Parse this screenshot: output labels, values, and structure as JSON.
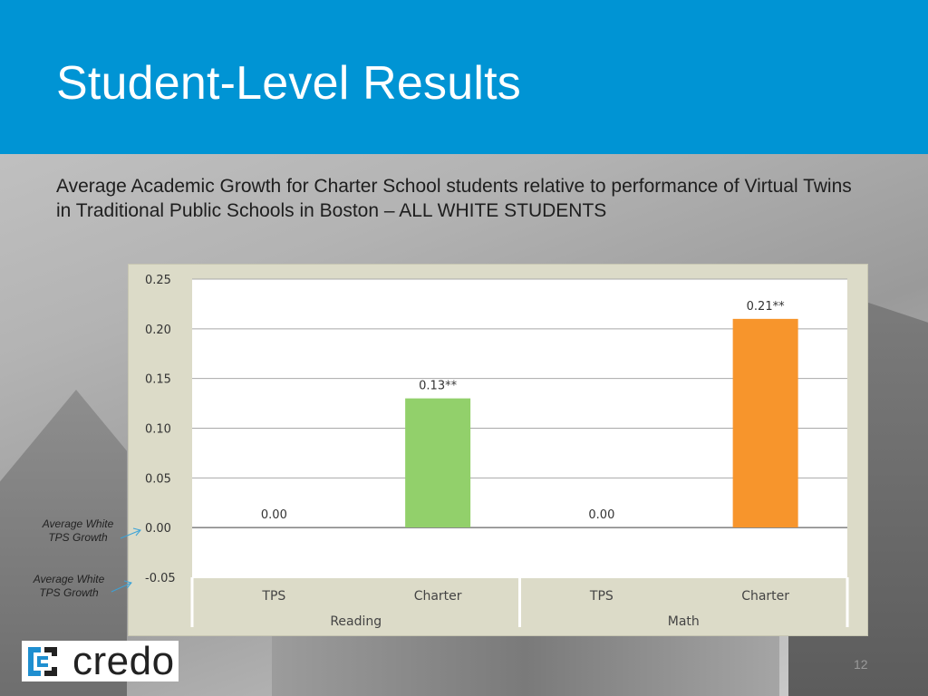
{
  "slide": {
    "title": "Student-Level Results",
    "subtitle": "Average Academic Growth for Charter School students relative to performance of Virtual Twins in Traditional Public Schools in Boston – ALL WHITE STUDENTS",
    "page_number": "12",
    "logo_text": "credo"
  },
  "annotations": [
    {
      "text": "Average White TPS Growth",
      "target": "0.00"
    },
    {
      "text": "Average White TPS Growth",
      "target": "-0.05"
    }
  ],
  "colors": {
    "header": "#0094d4",
    "charter_reading": "#92d06b",
    "charter_math": "#f7952c",
    "plot_bg": "#ffffff",
    "frame_bg": "#dcdbc8"
  },
  "chart_data": {
    "type": "bar",
    "ylim": [
      -0.05,
      0.25
    ],
    "yticks": [
      0.25,
      0.2,
      0.15,
      0.1,
      0.05,
      0.0,
      -0.05
    ],
    "ytick_labels": [
      "0.25",
      "0.20",
      "0.15",
      "0.10",
      "0.05",
      "0.00",
      "-0.05"
    ],
    "groups": [
      "Reading",
      "Math"
    ],
    "categories": [
      "TPS",
      "Charter",
      "TPS",
      "Charter"
    ],
    "values": [
      0.0,
      0.13,
      0.0,
      0.21
    ],
    "data_labels": [
      "0.00",
      "0.13**",
      "0.00",
      "0.21**"
    ],
    "bar_colors": [
      "none",
      "#92d06b",
      "none",
      "#f7952c"
    ],
    "grid": true
  }
}
